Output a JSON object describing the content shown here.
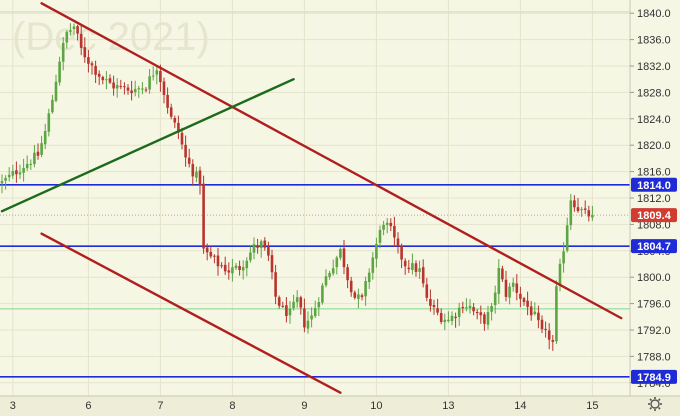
{
  "watermark": "(Dec 2021)",
  "colors": {
    "background": "#f6f6e4",
    "panel": "#eeeed8",
    "grid": "#e4e4cc",
    "up": "#5da543",
    "down": "#b8342e",
    "level": "#1f2bd6",
    "support_trend": "#1b6b1b",
    "resistance_trend": "#b01e1e",
    "current": "#d23b30",
    "green_line": "#7ed78a"
  },
  "chart_data": {
    "type": "candlestick",
    "ylim": [
      1782,
      1842
    ],
    "xlim": [
      0,
      170
    ],
    "y_ticks": [
      1840.0,
      1836.0,
      1832.0,
      1828.0,
      1824.0,
      1820.0,
      1816.0,
      1812.0,
      1808.0,
      1804.0,
      1800.0,
      1796.0,
      1792.0,
      1788.0,
      1784.0
    ],
    "x_ticks": [
      {
        "label": "3",
        "x": 3
      },
      {
        "label": "6",
        "x": 24
      },
      {
        "label": "7",
        "x": 44
      },
      {
        "label": "8",
        "x": 64
      },
      {
        "label": "9",
        "x": 84
      },
      {
        "label": "10",
        "x": 104
      },
      {
        "label": "13",
        "x": 124
      },
      {
        "label": "14",
        "x": 144
      },
      {
        "label": "15",
        "x": 164
      }
    ],
    "horizontal_levels": [
      {
        "label": "1814.0",
        "value": 1814.0
      },
      {
        "label": "1804.7",
        "value": 1804.7
      },
      {
        "label": "1784.9",
        "value": 1784.9
      }
    ],
    "green_level": 1795.2,
    "current_price": {
      "label": "1809.4",
      "value": 1809.4
    },
    "trend_lines": [
      {
        "kind": "resistance",
        "points": [
          [
            11,
            1841.5
          ],
          [
            172,
            1793.8
          ]
        ]
      },
      {
        "kind": "lower-channel",
        "points": [
          [
            11,
            1806.6
          ],
          [
            94,
            1782.5
          ]
        ]
      },
      {
        "kind": "support",
        "points": [
          [
            0,
            1810.0
          ],
          [
            81,
            1830.0
          ]
        ]
      }
    ],
    "anchors": [
      [
        0,
        1814.3
      ],
      [
        5,
        1816.5
      ],
      [
        10,
        1818.5
      ],
      [
        12,
        1822
      ],
      [
        14,
        1827
      ],
      [
        16,
        1833
      ],
      [
        18,
        1837
      ],
      [
        20,
        1838
      ],
      [
        22,
        1834.5
      ],
      [
        25,
        1832
      ],
      [
        28,
        1830
      ],
      [
        31,
        1829
      ],
      [
        34,
        1828.5
      ],
      [
        37,
        1828.5
      ],
      [
        40,
        1829
      ],
      [
        43,
        1832
      ],
      [
        45,
        1828
      ],
      [
        47,
        1824
      ],
      [
        49,
        1822
      ],
      [
        51,
        1818
      ],
      [
        53,
        1816
      ],
      [
        55,
        1814.5
      ],
      [
        56,
        1804
      ],
      [
        58,
        1803
      ],
      [
        60,
        1802
      ],
      [
        63,
        1801
      ],
      [
        66,
        1801.5
      ],
      [
        68,
        1803
      ],
      [
        70,
        1804.5
      ],
      [
        72,
        1805
      ],
      [
        74,
        1803
      ],
      [
        76,
        1797
      ],
      [
        78,
        1795
      ],
      [
        80,
        1794.5
      ],
      [
        82,
        1796.5
      ],
      [
        84,
        1793
      ],
      [
        86,
        1794
      ],
      [
        88,
        1797
      ],
      [
        90,
        1800
      ],
      [
        92,
        1802
      ],
      [
        94,
        1804
      ],
      [
        96,
        1800
      ],
      [
        98,
        1797
      ],
      [
        100,
        1796.5
      ],
      [
        102,
        1801
      ],
      [
        104,
        1805
      ],
      [
        106,
        1808.5
      ],
      [
        108,
        1807
      ],
      [
        110,
        1804
      ],
      [
        112,
        1802
      ],
      [
        114,
        1801.5
      ],
      [
        116,
        1801
      ],
      [
        118,
        1796.5
      ],
      [
        120,
        1795
      ],
      [
        122,
        1794
      ],
      [
        124,
        1793.5
      ],
      [
        126,
        1794.5
      ],
      [
        128,
        1796
      ],
      [
        130,
        1795.5
      ],
      [
        132,
        1794
      ],
      [
        134,
        1793.5
      ],
      [
        136,
        1795
      ],
      [
        138,
        1801
      ],
      [
        140,
        1797.5
      ],
      [
        142,
        1799
      ],
      [
        144,
        1797
      ],
      [
        146,
        1795.5
      ],
      [
        148,
        1794
      ],
      [
        150,
        1791.5
      ],
      [
        152,
        1791
      ],
      [
        153,
        1790
      ],
      [
        154,
        1798
      ],
      [
        156,
        1804.5
      ],
      [
        158,
        1812
      ],
      [
        160,
        1810.5
      ],
      [
        162,
        1809.5
      ],
      [
        164,
        1809.4
      ]
    ]
  }
}
